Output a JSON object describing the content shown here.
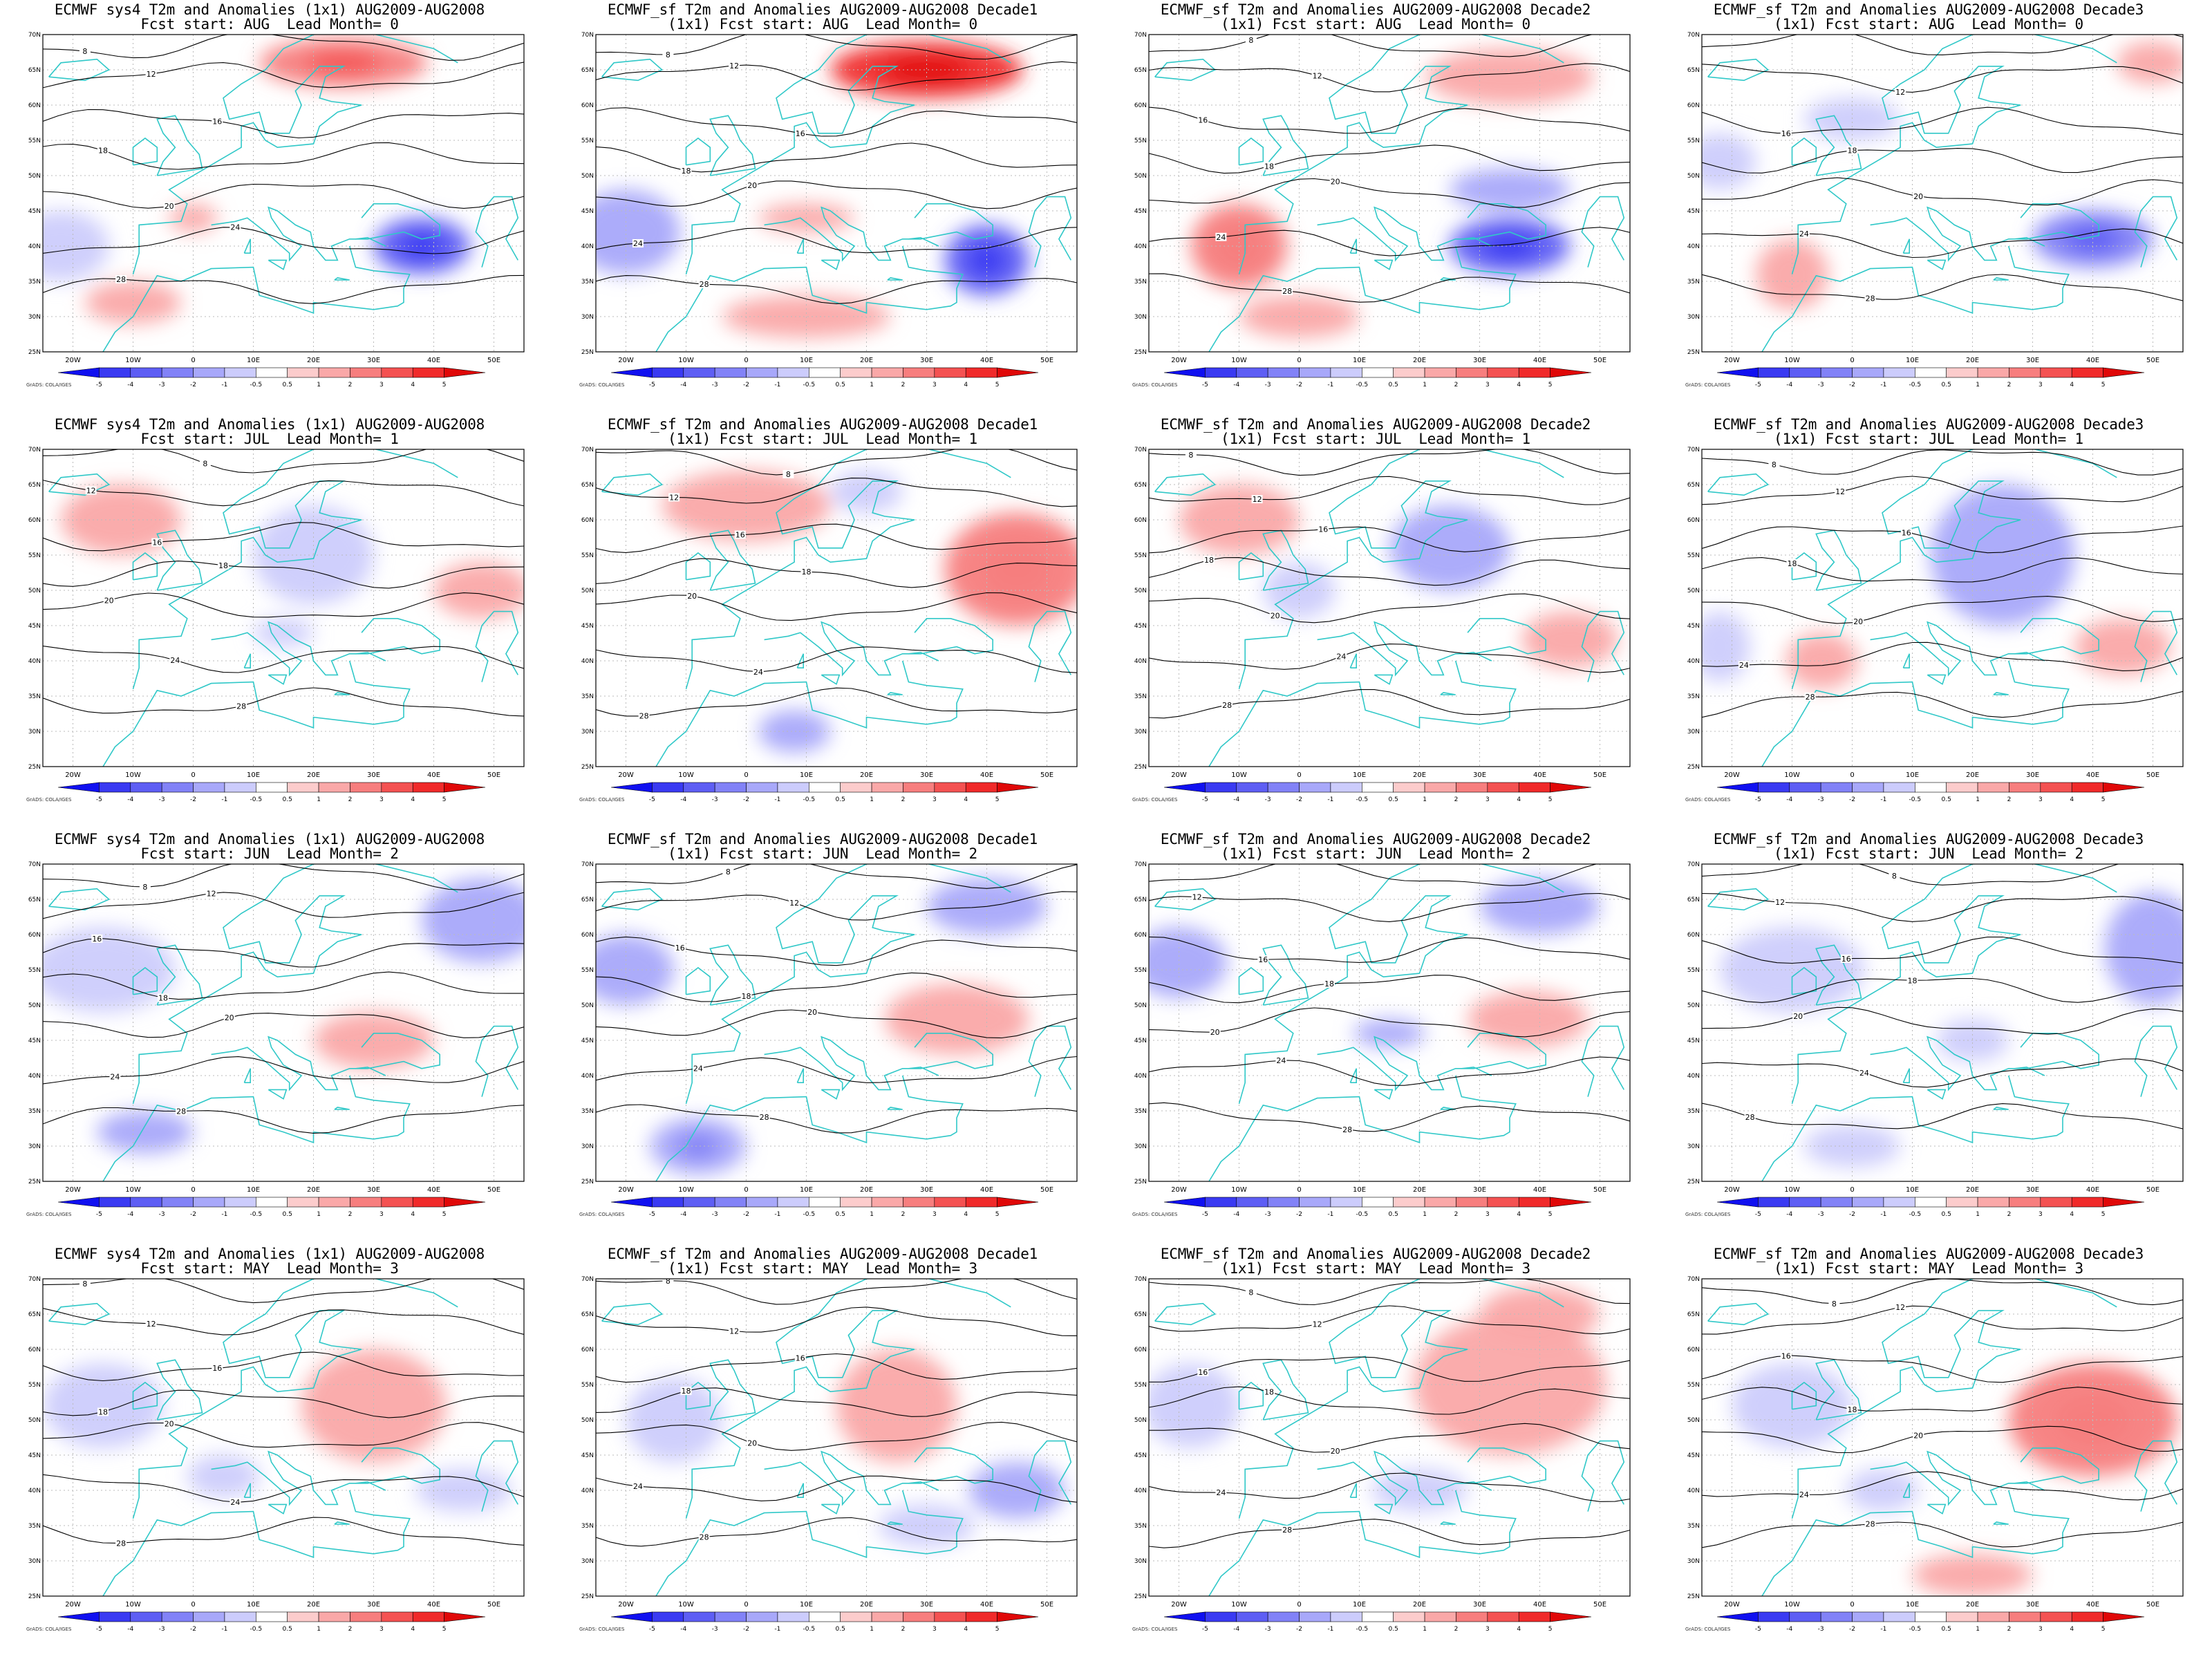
{
  "axes": {
    "lon_labels": [
      "20W",
      "10W",
      "0",
      "10E",
      "20E",
      "30E",
      "40E",
      "50E"
    ],
    "lon_values": [
      -20,
      -10,
      0,
      10,
      20,
      30,
      40,
      50
    ],
    "lat_labels": [
      "70N",
      "65N",
      "60N",
      "55N",
      "50N",
      "45N",
      "40N",
      "35N",
      "30N",
      "25N"
    ],
    "lat_values": [
      70,
      65,
      60,
      55,
      50,
      45,
      40,
      35,
      30,
      25
    ],
    "lon_range": [
      -25,
      55
    ],
    "lat_range": [
      25,
      70
    ]
  },
  "colorbar": {
    "labels": [
      "-5",
      "-4",
      "-3",
      "-2",
      "-1",
      "-0.5",
      "0.5",
      "1",
      "2",
      "3",
      "4",
      "5"
    ],
    "colors": [
      "#1010f0",
      "#3a3af2",
      "#5e5ef4",
      "#8282f7",
      "#a8a8fa",
      "#ccccfc",
      "#ffffff",
      "#fccccc",
      "#faa8a8",
      "#f77e7e",
      "#f45252",
      "#f02a2a",
      "#e00808"
    ],
    "credit": "GrADS: COLA/IGES"
  },
  "palette": {
    "coast": "#30c8c8",
    "contour": "#000000"
  },
  "panels": [
    {
      "title": "ECMWF sys4 T2m and Anomalies (1x1) AUG2009-AUG2008",
      "subtitle": "Fcst start: AUG  Lead Month= 0",
      "model": "sys4",
      "start": "AUG",
      "lead": 0,
      "anomalies": [
        {
          "lon": 25,
          "lat": 66,
          "rx": 14,
          "ry": 3.5,
          "v": 2.5
        },
        {
          "lon": 38,
          "lat": 40,
          "rx": 8,
          "ry": 4,
          "v": -3.5
        },
        {
          "lon": -22,
          "lat": 40,
          "rx": 8,
          "ry": 5,
          "v": -1
        },
        {
          "lon": 0,
          "lat": 44,
          "rx": 4,
          "ry": 2,
          "v": 1.5
        },
        {
          "lon": -10,
          "lat": 32,
          "rx": 8,
          "ry": 3,
          "v": 1
        }
      ]
    },
    {
      "title": "ECMWF_sf T2m and Anomalies AUG2009-AUG2008 Decade1",
      "subtitle": "(1x1) Fcst start: AUG  Lead Month= 0",
      "model": "sf",
      "decade": 1,
      "start": "AUG",
      "lead": 0,
      "anomalies": [
        {
          "lon": 30,
          "lat": 65,
          "rx": 16,
          "ry": 4,
          "v": 4
        },
        {
          "lon": 40,
          "lat": 38,
          "rx": 7,
          "ry": 5,
          "v": -3.5
        },
        {
          "lon": -20,
          "lat": 42,
          "rx": 9,
          "ry": 6,
          "v": -1.5
        },
        {
          "lon": 10,
          "lat": 44,
          "rx": 8,
          "ry": 2,
          "v": 1
        },
        {
          "lon": 10,
          "lat": 30,
          "rx": 14,
          "ry": 3,
          "v": 1
        }
      ]
    },
    {
      "title": "ECMWF_sf T2m and Anomalies AUG2009-AUG2008 Decade2",
      "subtitle": "(1x1) Fcst start: AUG  Lead Month= 0",
      "model": "sf",
      "decade": 2,
      "start": "AUG",
      "lead": 0,
      "anomalies": [
        {
          "lon": 35,
          "lat": 40,
          "rx": 10,
          "ry": 4,
          "v": -3.5
        },
        {
          "lon": 35,
          "lat": 48,
          "rx": 10,
          "ry": 3,
          "v": -1.5
        },
        {
          "lon": -10,
          "lat": 40,
          "rx": 8,
          "ry": 6,
          "v": 2
        },
        {
          "lon": 0,
          "lat": 30,
          "rx": 10,
          "ry": 3,
          "v": 1
        },
        {
          "lon": 35,
          "lat": 64,
          "rx": 14,
          "ry": 4,
          "v": 1
        }
      ]
    },
    {
      "title": "ECMWF_sf T2m and Anomalies AUG2009-AUG2008 Decade3",
      "subtitle": "(1x1) Fcst start: AUG  Lead Month= 0",
      "model": "sf",
      "decade": 3,
      "start": "AUG",
      "lead": 0,
      "anomalies": [
        {
          "lon": 40,
          "lat": 41,
          "rx": 10,
          "ry": 4,
          "v": -2.5
        },
        {
          "lon": -22,
          "lat": 52,
          "rx": 6,
          "ry": 4,
          "v": -1
        },
        {
          "lon": 0,
          "lat": 58,
          "rx": 8,
          "ry": 3,
          "v": -1
        },
        {
          "lon": 50,
          "lat": 66,
          "rx": 6,
          "ry": 3,
          "v": 1.5
        },
        {
          "lon": -10,
          "lat": 36,
          "rx": 6,
          "ry": 5,
          "v": 1
        }
      ]
    },
    {
      "title": "ECMWF sys4 T2m and Anomalies (1x1) AUG2009-AUG2008",
      "subtitle": "Fcst start: JUL  Lead Month= 1",
      "model": "sys4",
      "start": "JUL",
      "lead": 1,
      "anomalies": [
        {
          "lon": -12,
          "lat": 60,
          "rx": 10,
          "ry": 5,
          "v": 1
        },
        {
          "lon": 20,
          "lat": 55,
          "rx": 10,
          "ry": 7,
          "v": -1
        },
        {
          "lon": 48,
          "lat": 50,
          "rx": 8,
          "ry": 4,
          "v": 1.5
        },
        {
          "lon": 15,
          "lat": 44,
          "rx": 5,
          "ry": 2,
          "v": -1
        }
      ]
    },
    {
      "title": "ECMWF_sf T2m and Anomalies AUG2009-AUG2008 Decade1",
      "subtitle": "(1x1) Fcst start: JUL  Lead Month= 1",
      "model": "sf",
      "decade": 1,
      "start": "JUL",
      "lead": 1,
      "anomalies": [
        {
          "lon": 45,
          "lat": 53,
          "rx": 12,
          "ry": 8,
          "v": 2
        },
        {
          "lon": 0,
          "lat": 62,
          "rx": 14,
          "ry": 5,
          "v": 1
        },
        {
          "lon": 8,
          "lat": 30,
          "rx": 6,
          "ry": 3,
          "v": -1.5
        },
        {
          "lon": 20,
          "lat": 64,
          "rx": 6,
          "ry": 3,
          "v": -1
        }
      ]
    },
    {
      "title": "ECMWF_sf T2m and Anomalies AUG2009-AUG2008 Decade2",
      "subtitle": "(1x1) Fcst start: JUL  Lead Month= 1",
      "model": "sf",
      "decade": 2,
      "start": "JUL",
      "lead": 1,
      "anomalies": [
        {
          "lon": 25,
          "lat": 56,
          "rx": 10,
          "ry": 6,
          "v": -1.5
        },
        {
          "lon": 45,
          "lat": 43,
          "rx": 8,
          "ry": 4,
          "v": 1
        },
        {
          "lon": -10,
          "lat": 60,
          "rx": 10,
          "ry": 5,
          "v": 1
        },
        {
          "lon": 0,
          "lat": 50,
          "rx": 6,
          "ry": 4,
          "v": -0.8
        }
      ]
    },
    {
      "title": "ECMWF_sf T2m and Anomalies AUG2009-AUG2008 Decade3",
      "subtitle": "(1x1) Fcst start: JUL  Lead Month= 1",
      "model": "sf",
      "decade": 3,
      "start": "JUL",
      "lead": 1,
      "anomalies": [
        {
          "lon": 25,
          "lat": 55,
          "rx": 12,
          "ry": 10,
          "v": -1.5
        },
        {
          "lon": -5,
          "lat": 40,
          "rx": 6,
          "ry": 4,
          "v": 1.5
        },
        {
          "lon": 45,
          "lat": 42,
          "rx": 8,
          "ry": 4,
          "v": 1
        },
        {
          "lon": -22,
          "lat": 42,
          "rx": 5,
          "ry": 5,
          "v": -1
        }
      ]
    },
    {
      "title": "ECMWF sys4 T2m and Anomalies (1x1) AUG2009-AUG2008",
      "subtitle": "Fcst start: JUN  Lead Month= 2",
      "model": "sys4",
      "start": "JUN",
      "lead": 2,
      "anomalies": [
        {
          "lon": 48,
          "lat": 62,
          "rx": 10,
          "ry": 6,
          "v": -1.5
        },
        {
          "lon": -15,
          "lat": 55,
          "rx": 12,
          "ry": 6,
          "v": -0.8
        },
        {
          "lon": -8,
          "lat": 32,
          "rx": 8,
          "ry": 3,
          "v": -1.5
        },
        {
          "lon": 30,
          "lat": 45,
          "rx": 10,
          "ry": 4,
          "v": 1
        }
      ]
    },
    {
      "title": "ECMWF_sf T2m and Anomalies AUG2009-AUG2008 Decade1",
      "subtitle": "(1x1) Fcst start: JUN  Lead Month= 2",
      "model": "sf",
      "decade": 1,
      "start": "JUN",
      "lead": 2,
      "anomalies": [
        {
          "lon": 40,
          "lat": 64,
          "rx": 10,
          "ry": 4,
          "v": -1.5
        },
        {
          "lon": 35,
          "lat": 48,
          "rx": 12,
          "ry": 5,
          "v": 1.5
        },
        {
          "lon": -20,
          "lat": 55,
          "rx": 8,
          "ry": 5,
          "v": -1.5
        },
        {
          "lon": -8,
          "lat": 30,
          "rx": 8,
          "ry": 4,
          "v": -2
        }
      ]
    },
    {
      "title": "ECMWF_sf T2m and Anomalies AUG2009-AUG2008 Decade2",
      "subtitle": "(1x1) Fcst start: JUN  Lead Month= 2",
      "model": "sf",
      "decade": 2,
      "start": "JUN",
      "lead": 2,
      "anomalies": [
        {
          "lon": 40,
          "lat": 64,
          "rx": 10,
          "ry": 4,
          "v": -1.5
        },
        {
          "lon": 38,
          "lat": 48,
          "rx": 10,
          "ry": 4,
          "v": 1.5
        },
        {
          "lon": -20,
          "lat": 56,
          "rx": 8,
          "ry": 5,
          "v": -1.5
        },
        {
          "lon": 15,
          "lat": 46,
          "rx": 6,
          "ry": 2,
          "v": -1.5
        }
      ]
    },
    {
      "title": "ECMWF_sf T2m and Anomalies AUG2009-AUG2008 Decade3",
      "subtitle": "(1x1) Fcst start: JUN  Lead Month= 2",
      "model": "sf",
      "decade": 3,
      "start": "JUN",
      "lead": 2,
      "anomalies": [
        {
          "lon": 50,
          "lat": 58,
          "rx": 8,
          "ry": 8,
          "v": -1.5
        },
        {
          "lon": -10,
          "lat": 55,
          "rx": 12,
          "ry": 6,
          "v": -1
        },
        {
          "lon": 20,
          "lat": 45,
          "rx": 6,
          "ry": 3,
          "v": -1
        },
        {
          "lon": 0,
          "lat": 30,
          "rx": 8,
          "ry": 3,
          "v": -1
        }
      ]
    },
    {
      "title": "ECMWF sys4 T2m and Anomalies (1x1) AUG2009-AUG2008",
      "subtitle": "Fcst start: MAY  Lead Month= 3",
      "model": "sys4",
      "start": "MAY",
      "lead": 3,
      "anomalies": [
        {
          "lon": 30,
          "lat": 52,
          "rx": 12,
          "ry": 8,
          "v": 1.5
        },
        {
          "lon": -15,
          "lat": 52,
          "rx": 10,
          "ry": 6,
          "v": -1
        },
        {
          "lon": 45,
          "lat": 40,
          "rx": 8,
          "ry": 3,
          "v": -1
        },
        {
          "lon": 5,
          "lat": 42,
          "rx": 6,
          "ry": 3,
          "v": -0.8
        }
      ]
    },
    {
      "title": "ECMWF_sf T2m and Anomalies AUG2009-AUG2008 Decade1",
      "subtitle": "(1x1) Fcst start: MAY  Lead Month= 3",
      "model": "sf",
      "decade": 1,
      "start": "MAY",
      "lead": 3,
      "anomalies": [
        {
          "lon": 25,
          "lat": 52,
          "rx": 10,
          "ry": 8,
          "v": 1
        },
        {
          "lon": 45,
          "lat": 40,
          "rx": 8,
          "ry": 4,
          "v": -1.5
        },
        {
          "lon": -12,
          "lat": 50,
          "rx": 8,
          "ry": 6,
          "v": -0.8
        },
        {
          "lon": 30,
          "lat": 35,
          "rx": 8,
          "ry": 3,
          "v": -1
        }
      ]
    },
    {
      "title": "ECMWF_sf T2m and Anomalies AUG2009-AUG2008 Decade2",
      "subtitle": "(1x1) Fcst start: MAY  Lead Month= 3",
      "model": "sf",
      "decade": 2,
      "start": "MAY",
      "lead": 3,
      "anomalies": [
        {
          "lon": 35,
          "lat": 55,
          "rx": 16,
          "ry": 10,
          "v": 1.5
        },
        {
          "lon": -18,
          "lat": 52,
          "rx": 8,
          "ry": 6,
          "v": -1
        },
        {
          "lon": 20,
          "lat": 40,
          "rx": 8,
          "ry": 3,
          "v": -0.8
        },
        {
          "lon": 40,
          "lat": 65,
          "rx": 10,
          "ry": 4,
          "v": 1
        }
      ]
    },
    {
      "title": "ECMWF_sf T2m and Anomalies AUG2009-AUG2008 Decade3",
      "subtitle": "(1x1) Fcst start: MAY  Lead Month= 3",
      "model": "sf",
      "decade": 3,
      "start": "MAY",
      "lead": 3,
      "anomalies": [
        {
          "lon": 40,
          "lat": 50,
          "rx": 14,
          "ry": 8,
          "v": 2
        },
        {
          "lon": -10,
          "lat": 52,
          "rx": 10,
          "ry": 6,
          "v": -1
        },
        {
          "lon": 20,
          "lat": 28,
          "rx": 10,
          "ry": 3,
          "v": 1
        },
        {
          "lon": 5,
          "lat": 40,
          "rx": 6,
          "ry": 3,
          "v": -0.8
        }
      ]
    }
  ]
}
